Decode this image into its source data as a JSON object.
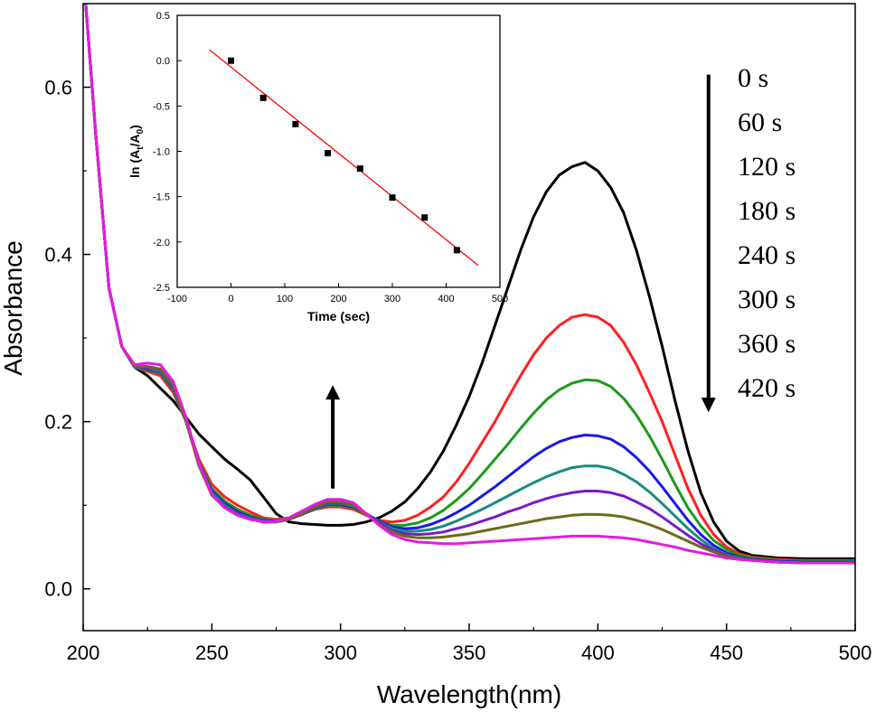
{
  "chart_data": [
    {
      "type": "line",
      "xlabel": "Wavelength(nm)",
      "ylabel": "Absorbance",
      "xlim": [
        200,
        500
      ],
      "ylim": [
        -0.05,
        0.7
      ],
      "xticks": [
        200,
        250,
        300,
        350,
        400,
        450,
        500
      ],
      "yticks": [
        0.0,
        0.2,
        0.4,
        0.6
      ],
      "ytick_labels": [
        "0.0",
        "0.2",
        "0.4",
        "0.6"
      ],
      "grid": false,
      "legend_labels": [
        "0 s",
        "60 s",
        "120 s",
        "180 s",
        "240 s",
        "300 s",
        "360 s",
        "420 s"
      ],
      "legend_placement": "top-right",
      "annotations": [
        {
          "type": "arrow-down",
          "x": 443,
          "y_from": 0.615,
          "y_to": 0.22,
          "meaning": "peak at 400 nm decreases with time"
        },
        {
          "type": "arrow-up",
          "x": 297,
          "y_from": 0.12,
          "y_to": 0.235,
          "meaning": "peak near 297 nm increases with time"
        }
      ],
      "series": [
        {
          "color": "#000000",
          "x": [
            201,
            205,
            210,
            215,
            220,
            225,
            230,
            235,
            240,
            245,
            250,
            255,
            260,
            265,
            270,
            275,
            280,
            285,
            290,
            295,
            300,
            305,
            310,
            315,
            320,
            325,
            330,
            335,
            340,
            345,
            350,
            355,
            360,
            365,
            370,
            375,
            380,
            385,
            390,
            395,
            400,
            405,
            410,
            415,
            420,
            425,
            430,
            435,
            440,
            445,
            450,
            455,
            460,
            470,
            480,
            490,
            500
          ],
          "y": [
            0.7,
            0.54,
            0.36,
            0.29,
            0.265,
            0.255,
            0.24,
            0.225,
            0.205,
            0.185,
            0.17,
            0.155,
            0.143,
            0.13,
            0.11,
            0.09,
            0.08,
            0.078,
            0.077,
            0.076,
            0.076,
            0.077,
            0.08,
            0.085,
            0.093,
            0.104,
            0.12,
            0.14,
            0.165,
            0.196,
            0.23,
            0.27,
            0.315,
            0.36,
            0.405,
            0.445,
            0.475,
            0.495,
            0.505,
            0.51,
            0.5,
            0.48,
            0.45,
            0.405,
            0.35,
            0.29,
            0.225,
            0.165,
            0.115,
            0.08,
            0.057,
            0.045,
            0.04,
            0.037,
            0.036,
            0.036,
            0.036
          ]
        },
        {
          "color": "#ff2020",
          "x": [
            201,
            205,
            210,
            215,
            220,
            225,
            230,
            235,
            240,
            245,
            250,
            255,
            260,
            265,
            270,
            275,
            280,
            285,
            290,
            295,
            300,
            305,
            310,
            315,
            320,
            325,
            330,
            335,
            340,
            345,
            350,
            355,
            360,
            365,
            370,
            375,
            380,
            385,
            390,
            395,
            400,
            405,
            410,
            415,
            420,
            425,
            430,
            435,
            440,
            445,
            450,
            455,
            460,
            470,
            480,
            490,
            500
          ],
          "y": [
            0.7,
            0.54,
            0.36,
            0.29,
            0.265,
            0.26,
            0.255,
            0.235,
            0.2,
            0.155,
            0.125,
            0.11,
            0.1,
            0.092,
            0.085,
            0.083,
            0.085,
            0.09,
            0.095,
            0.098,
            0.098,
            0.095,
            0.088,
            0.082,
            0.08,
            0.082,
            0.088,
            0.098,
            0.11,
            0.128,
            0.15,
            0.175,
            0.2,
            0.228,
            0.255,
            0.28,
            0.3,
            0.315,
            0.325,
            0.328,
            0.325,
            0.315,
            0.295,
            0.268,
            0.235,
            0.2,
            0.16,
            0.12,
            0.088,
            0.065,
            0.05,
            0.042,
            0.038,
            0.035,
            0.034,
            0.034,
            0.034
          ]
        },
        {
          "color": "#1c9a1c",
          "x": [
            201,
            205,
            210,
            215,
            220,
            225,
            230,
            235,
            240,
            245,
            250,
            255,
            260,
            265,
            270,
            275,
            280,
            285,
            290,
            295,
            300,
            305,
            310,
            315,
            320,
            325,
            330,
            335,
            340,
            345,
            350,
            355,
            360,
            365,
            370,
            375,
            380,
            385,
            390,
            395,
            400,
            405,
            410,
            415,
            420,
            425,
            430,
            435,
            440,
            445,
            450,
            455,
            460,
            470,
            480,
            490,
            500
          ],
          "y": [
            0.7,
            0.54,
            0.36,
            0.29,
            0.265,
            0.262,
            0.258,
            0.238,
            0.2,
            0.152,
            0.12,
            0.105,
            0.095,
            0.088,
            0.083,
            0.082,
            0.084,
            0.089,
            0.095,
            0.1,
            0.1,
            0.097,
            0.089,
            0.081,
            0.076,
            0.076,
            0.079,
            0.085,
            0.094,
            0.106,
            0.12,
            0.137,
            0.155,
            0.173,
            0.192,
            0.21,
            0.226,
            0.238,
            0.246,
            0.25,
            0.249,
            0.242,
            0.228,
            0.208,
            0.183,
            0.155,
            0.125,
            0.097,
            0.075,
            0.058,
            0.047,
            0.04,
            0.037,
            0.034,
            0.033,
            0.033,
            0.033
          ]
        },
        {
          "color": "#1a1ae6",
          "x": [
            201,
            205,
            210,
            215,
            220,
            225,
            230,
            235,
            240,
            245,
            250,
            255,
            260,
            265,
            270,
            275,
            280,
            285,
            290,
            295,
            300,
            305,
            310,
            315,
            320,
            325,
            330,
            335,
            340,
            345,
            350,
            355,
            360,
            365,
            370,
            375,
            380,
            385,
            390,
            395,
            400,
            405,
            410,
            415,
            420,
            425,
            430,
            435,
            440,
            445,
            450,
            455,
            460,
            470,
            480,
            490,
            500
          ],
          "y": [
            0.7,
            0.54,
            0.36,
            0.29,
            0.265,
            0.263,
            0.259,
            0.24,
            0.2,
            0.15,
            0.117,
            0.102,
            0.092,
            0.086,
            0.082,
            0.081,
            0.084,
            0.089,
            0.096,
            0.101,
            0.101,
            0.098,
            0.09,
            0.081,
            0.074,
            0.072,
            0.073,
            0.077,
            0.083,
            0.091,
            0.1,
            0.111,
            0.122,
            0.134,
            0.146,
            0.158,
            0.168,
            0.176,
            0.181,
            0.184,
            0.183,
            0.179,
            0.17,
            0.157,
            0.141,
            0.122,
            0.102,
            0.082,
            0.065,
            0.052,
            0.043,
            0.038,
            0.035,
            0.033,
            0.032,
            0.032,
            0.032
          ]
        },
        {
          "color": "#1a8c80",
          "x": [
            201,
            205,
            210,
            215,
            220,
            225,
            230,
            235,
            240,
            245,
            250,
            255,
            260,
            265,
            270,
            275,
            280,
            285,
            290,
            295,
            300,
            305,
            310,
            315,
            320,
            325,
            330,
            335,
            340,
            345,
            350,
            355,
            360,
            365,
            370,
            375,
            380,
            385,
            390,
            395,
            400,
            405,
            410,
            415,
            420,
            425,
            430,
            435,
            440,
            445,
            450,
            455,
            460,
            470,
            480,
            490,
            500
          ],
          "y": [
            0.7,
            0.54,
            0.36,
            0.29,
            0.265,
            0.264,
            0.26,
            0.241,
            0.2,
            0.149,
            0.115,
            0.1,
            0.09,
            0.085,
            0.081,
            0.08,
            0.083,
            0.089,
            0.096,
            0.102,
            0.102,
            0.099,
            0.09,
            0.08,
            0.072,
            0.069,
            0.069,
            0.071,
            0.075,
            0.081,
            0.088,
            0.095,
            0.103,
            0.111,
            0.119,
            0.127,
            0.134,
            0.14,
            0.145,
            0.147,
            0.147,
            0.144,
            0.137,
            0.128,
            0.116,
            0.102,
            0.087,
            0.072,
            0.059,
            0.048,
            0.041,
            0.037,
            0.034,
            0.032,
            0.031,
            0.031,
            0.031
          ]
        },
        {
          "color": "#7a1ac8",
          "x": [
            201,
            205,
            210,
            215,
            220,
            225,
            230,
            235,
            240,
            245,
            250,
            255,
            260,
            265,
            270,
            275,
            280,
            285,
            290,
            295,
            300,
            305,
            310,
            315,
            320,
            325,
            330,
            335,
            340,
            345,
            350,
            355,
            360,
            365,
            370,
            375,
            380,
            385,
            390,
            395,
            400,
            405,
            410,
            415,
            420,
            425,
            430,
            435,
            440,
            445,
            450,
            455,
            460,
            470,
            480,
            490,
            500
          ],
          "y": [
            0.7,
            0.54,
            0.36,
            0.29,
            0.266,
            0.265,
            0.262,
            0.243,
            0.2,
            0.148,
            0.113,
            0.098,
            0.089,
            0.084,
            0.08,
            0.08,
            0.083,
            0.089,
            0.097,
            0.103,
            0.103,
            0.1,
            0.09,
            0.079,
            0.07,
            0.066,
            0.065,
            0.066,
            0.068,
            0.072,
            0.076,
            0.081,
            0.086,
            0.092,
            0.097,
            0.103,
            0.108,
            0.112,
            0.115,
            0.117,
            0.117,
            0.115,
            0.111,
            0.104,
            0.096,
            0.086,
            0.075,
            0.064,
            0.054,
            0.046,
            0.04,
            0.036,
            0.034,
            0.032,
            0.031,
            0.031,
            0.031
          ]
        },
        {
          "color": "#6b6b1a",
          "x": [
            201,
            205,
            210,
            215,
            220,
            225,
            230,
            235,
            240,
            245,
            250,
            255,
            260,
            265,
            270,
            275,
            280,
            285,
            290,
            295,
            300,
            305,
            310,
            315,
            320,
            325,
            330,
            335,
            340,
            345,
            350,
            355,
            360,
            365,
            370,
            375,
            380,
            385,
            390,
            395,
            400,
            405,
            410,
            415,
            420,
            425,
            430,
            435,
            440,
            445,
            450,
            455,
            460,
            470,
            480,
            490,
            500
          ],
          "y": [
            0.7,
            0.54,
            0.36,
            0.29,
            0.266,
            0.266,
            0.263,
            0.244,
            0.2,
            0.147,
            0.112,
            0.097,
            0.088,
            0.083,
            0.08,
            0.08,
            0.083,
            0.09,
            0.098,
            0.104,
            0.104,
            0.1,
            0.089,
            0.077,
            0.068,
            0.063,
            0.061,
            0.061,
            0.062,
            0.064,
            0.066,
            0.069,
            0.072,
            0.075,
            0.078,
            0.081,
            0.084,
            0.086,
            0.088,
            0.089,
            0.089,
            0.088,
            0.086,
            0.082,
            0.077,
            0.071,
            0.064,
            0.057,
            0.05,
            0.044,
            0.039,
            0.036,
            0.034,
            0.032,
            0.031,
            0.031,
            0.031
          ]
        },
        {
          "color": "#e61ae0",
          "x": [
            201,
            205,
            210,
            215,
            220,
            225,
            230,
            235,
            240,
            245,
            250,
            255,
            260,
            265,
            270,
            275,
            280,
            285,
            290,
            295,
            300,
            305,
            310,
            315,
            320,
            325,
            330,
            335,
            340,
            345,
            350,
            355,
            360,
            365,
            370,
            375,
            380,
            385,
            390,
            395,
            400,
            405,
            410,
            415,
            420,
            425,
            430,
            435,
            440,
            445,
            450,
            455,
            460,
            470,
            480,
            490,
            500
          ],
          "y": [
            0.7,
            0.54,
            0.36,
            0.29,
            0.268,
            0.27,
            0.268,
            0.248,
            0.205,
            0.15,
            0.113,
            0.097,
            0.088,
            0.083,
            0.08,
            0.081,
            0.085,
            0.093,
            0.101,
            0.107,
            0.107,
            0.103,
            0.09,
            0.076,
            0.065,
            0.059,
            0.056,
            0.055,
            0.054,
            0.054,
            0.055,
            0.056,
            0.057,
            0.058,
            0.059,
            0.06,
            0.061,
            0.062,
            0.063,
            0.063,
            0.063,
            0.062,
            0.061,
            0.059,
            0.056,
            0.053,
            0.05,
            0.046,
            0.043,
            0.04,
            0.037,
            0.035,
            0.034,
            0.032,
            0.031,
            0.031,
            0.031
          ]
        }
      ]
    },
    {
      "type": "scatter",
      "xlabel": "Time (sec)",
      "ylabel": "ln (At/A0)",
      "xlim": [
        -100,
        500
      ],
      "ylim": [
        -2.5,
        0.5
      ],
      "xticks": [
        -100,
        0,
        100,
        200,
        300,
        400,
        500
      ],
      "yticks": [
        0.5,
        0.0,
        -0.5,
        -1.0,
        -1.5,
        -2.0,
        -2.5
      ],
      "ytick_labels": [
        "0.5",
        "0.0",
        "-0.5",
        "-1.0",
        "-1.5",
        "-2.0",
        "-2.5"
      ],
      "grid": false,
      "points": {
        "x": [
          0,
          60,
          120,
          180,
          240,
          300,
          360,
          420
        ],
        "y": [
          0.0,
          -0.41,
          -0.7,
          -1.02,
          -1.19,
          -1.51,
          -1.73,
          -2.09
        ]
      },
      "fit_line": {
        "color": "#ff0000",
        "x": [
          -40,
          460
        ],
        "y": [
          0.12,
          -2.26
        ]
      }
    }
  ]
}
